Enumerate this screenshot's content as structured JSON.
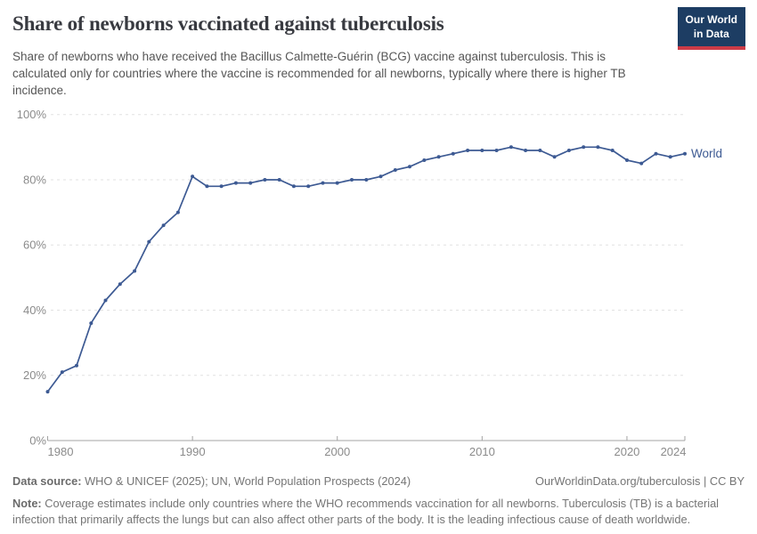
{
  "header": {
    "title": "Share of newborns vaccinated against tuberculosis",
    "subtitle": "Share of newborns who have received the Bacillus Calmette-Guérin (BCG) vaccine against tuberculosis. This is calculated only for countries where the vaccine is recommended for all newborns, typically where there is higher TB incidence.",
    "logo": {
      "line1": "Our World",
      "line2": "in Data",
      "bg_color": "#1d3d63",
      "accent_color": "#cc3b47"
    }
  },
  "chart_data": {
    "type": "line",
    "title": "Share of newborns vaccinated against tuberculosis",
    "xlabel": "",
    "ylabel": "",
    "xlim": [
      1980,
      2024
    ],
    "ylim": [
      0,
      100
    ],
    "grid": "horizontal-dashed",
    "legend_position": "end-of-line-label",
    "x_ticks": [
      1980,
      1990,
      2000,
      2010,
      2020,
      2024
    ],
    "x_tick_labels": [
      "1980",
      "1990",
      "2000",
      "2010",
      "2020",
      "2024"
    ],
    "y_ticks": [
      0,
      20,
      40,
      60,
      80,
      100
    ],
    "y_tick_labels": [
      "0%",
      "20%",
      "40%",
      "60%",
      "80%",
      "100%"
    ],
    "colors": {
      "grid": "#e2e2e2",
      "axis": "#a3a3a3",
      "tick_text": "#8b8b8b"
    },
    "series": [
      {
        "name": "World",
        "color": "#3d5a93",
        "x": [
          1980,
          1981,
          1982,
          1983,
          1984,
          1985,
          1986,
          1987,
          1988,
          1989,
          1990,
          1991,
          1992,
          1993,
          1994,
          1995,
          1996,
          1997,
          1998,
          1999,
          2000,
          2001,
          2002,
          2003,
          2004,
          2005,
          2006,
          2007,
          2008,
          2009,
          2010,
          2011,
          2012,
          2013,
          2014,
          2015,
          2016,
          2017,
          2018,
          2019,
          2020,
          2021,
          2022,
          2023,
          2024
        ],
        "values": [
          15,
          21,
          23,
          36,
          43,
          48,
          52,
          61,
          66,
          70,
          81,
          78,
          78,
          79,
          79,
          80,
          80,
          78,
          78,
          79,
          79,
          80,
          80,
          81,
          83,
          84,
          86,
          87,
          88,
          89,
          89,
          89,
          90,
          89,
          89,
          87,
          89,
          90,
          90,
          89,
          86,
          85,
          88,
          87,
          88
        ]
      }
    ]
  },
  "footer": {
    "datasource_label": "Data source:",
    "datasource_text": " WHO & UNICEF (2025); UN, World Population Prospects (2024)",
    "credit": "OurWorldinData.org/tuberculosis | CC BY",
    "note_label": "Note:",
    "note_text": " Coverage estimates include only countries where the WHO recommends vaccination for all newborns. Tuberculosis (TB) is a bacterial infection that primarily affects the lungs but can also affect other parts of the body. It is the leading infectious cause of death worldwide."
  }
}
